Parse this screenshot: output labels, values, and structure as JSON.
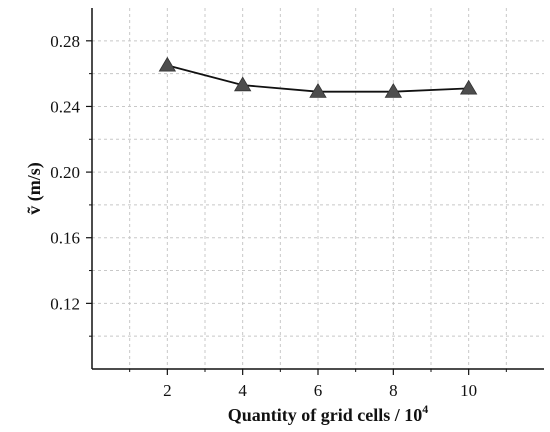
{
  "chart_data": {
    "type": "line",
    "title": "",
    "xlabel": "Quantity of grid cells / 10",
    "xlabel_superscript": "4",
    "ylabel": "ṽ (m/s)",
    "x": [
      2,
      4,
      6,
      8,
      10
    ],
    "series": [
      {
        "values": [
          0.265,
          0.253,
          0.249,
          0.249,
          0.251
        ]
      }
    ],
    "xlim": [
      0,
      12
    ],
    "ylim": [
      0.08,
      0.3
    ],
    "x_ticks": [
      "2",
      "4",
      "6",
      "8",
      "10"
    ],
    "y_ticks": [
      "0.12",
      "0.16",
      "0.20",
      "0.24",
      "0.28"
    ],
    "grid": true,
    "marker": "triangle",
    "line_color": "#111111",
    "marker_color": "#4d4d4d",
    "grid_color": "#c8c8c8"
  }
}
